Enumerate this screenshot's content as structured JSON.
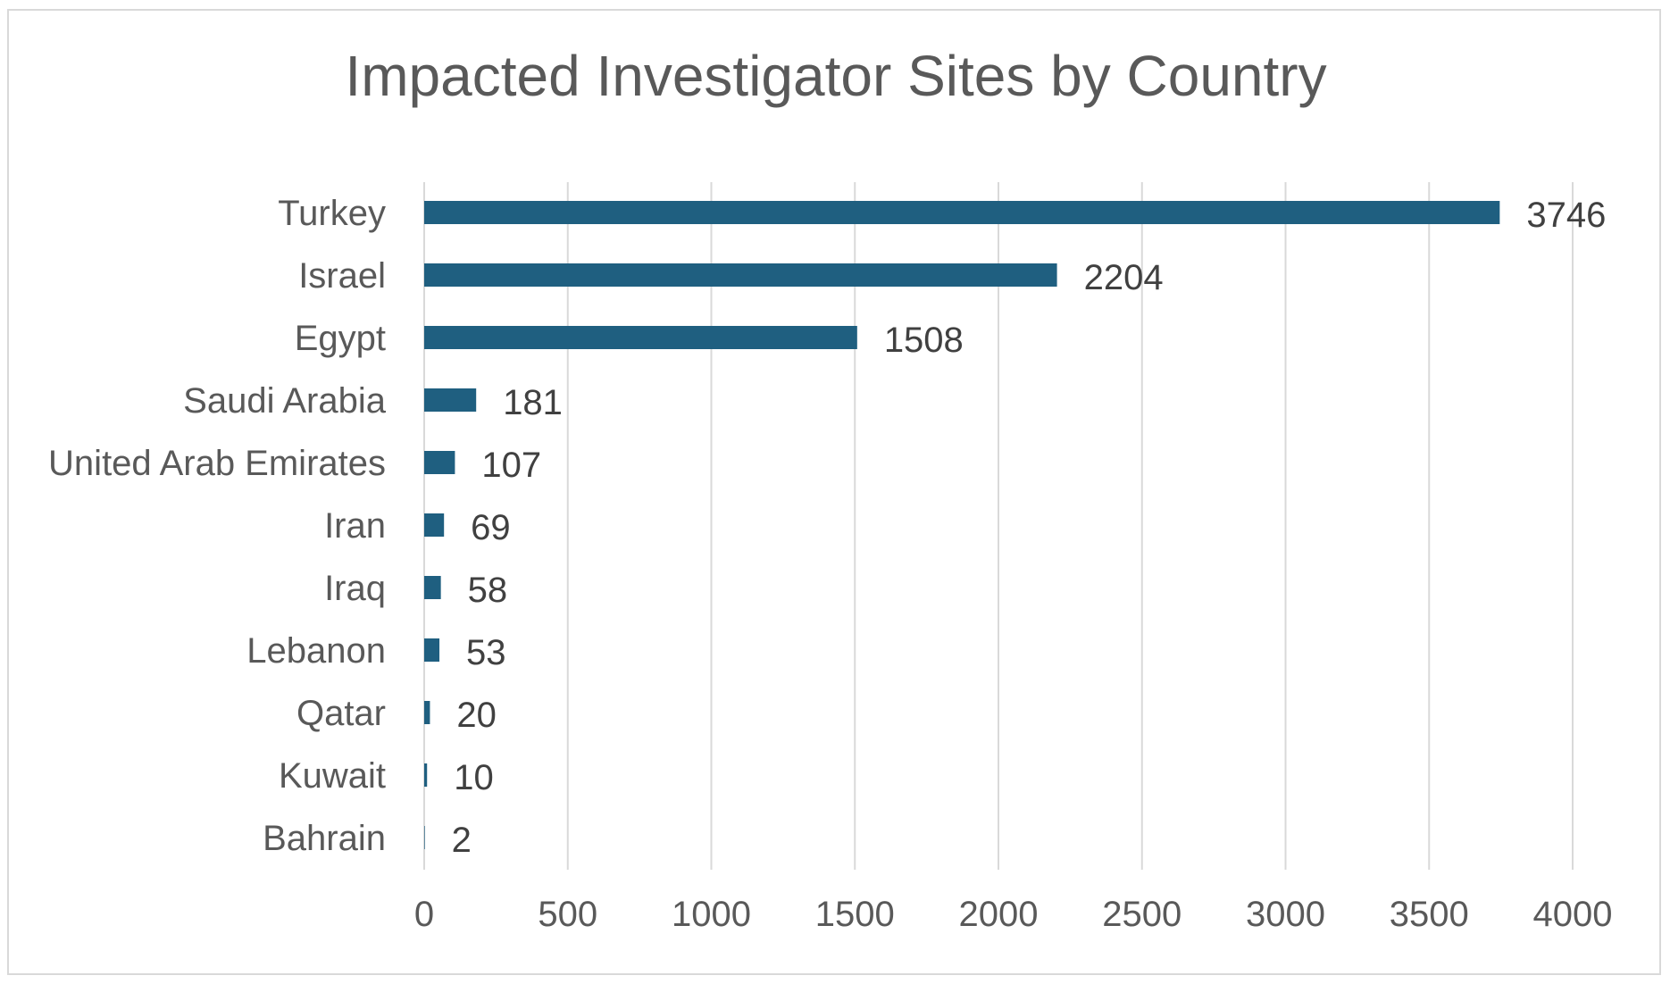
{
  "chart_data": {
    "type": "bar",
    "orientation": "horizontal",
    "title": "Impacted Investigator Sites by Country",
    "xlabel": "",
    "ylabel": "",
    "categories": [
      "Turkey",
      "Israel",
      "Egypt",
      "Saudi Arabia",
      "United Arab Emirates",
      "Iran",
      "Iraq",
      "Lebanon",
      "Qatar",
      "Kuwait",
      "Bahrain"
    ],
    "values": [
      3746,
      2204,
      1508,
      181,
      107,
      69,
      58,
      53,
      20,
      10,
      2
    ],
    "xlim": [
      0,
      4000
    ],
    "xticks": [
      0,
      500,
      1000,
      1500,
      2000,
      2500,
      3000,
      3500,
      4000
    ],
    "grid": "vertical",
    "legend": "none",
    "bar_color": "#1f5f80",
    "data_labels": true
  }
}
